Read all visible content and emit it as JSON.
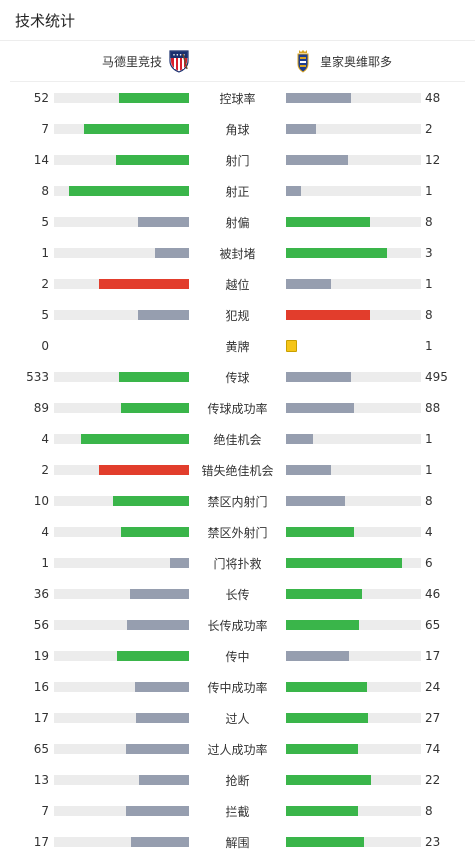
{
  "header": {
    "title": "技术统计"
  },
  "teams": {
    "home": "马德里竞技",
    "away": "皇家奥维耶多"
  },
  "colors": {
    "win": "#3ab54a",
    "lose": "#969eaf",
    "red": "#e23d2c",
    "track": "#ececec",
    "yellow": "#f5c518"
  },
  "stats": [
    {
      "label": "控球率",
      "home": "52",
      "away": "48",
      "home_pct": 0.52,
      "away_pct": 0.48,
      "home_color": "win",
      "away_color": "lose"
    },
    {
      "label": "角球",
      "home": "7",
      "away": "2",
      "home_pct": 0.78,
      "away_pct": 0.22,
      "home_color": "win",
      "away_color": "lose"
    },
    {
      "label": "射门",
      "home": "14",
      "away": "12",
      "home_pct": 0.54,
      "away_pct": 0.46,
      "home_color": "win",
      "away_color": "lose"
    },
    {
      "label": "射正",
      "home": "8",
      "away": "1",
      "home_pct": 0.89,
      "away_pct": 0.11,
      "home_color": "win",
      "away_color": "lose"
    },
    {
      "label": "射偏",
      "home": "5",
      "away": "8",
      "home_pct": 0.38,
      "away_pct": 0.62,
      "home_color": "lose",
      "away_color": "win"
    },
    {
      "label": "被封堵",
      "home": "1",
      "away": "3",
      "home_pct": 0.25,
      "away_pct": 0.75,
      "home_color": "lose",
      "away_color": "win"
    },
    {
      "label": "越位",
      "home": "2",
      "away": "1",
      "home_pct": 0.67,
      "away_pct": 0.33,
      "home_color": "red",
      "away_color": "lose"
    },
    {
      "label": "犯规",
      "home": "5",
      "away": "8",
      "home_pct": 0.38,
      "away_pct": 0.62,
      "home_color": "lose",
      "away_color": "red"
    },
    {
      "label": "黄牌",
      "home": "0",
      "away": "1",
      "card": true
    },
    {
      "label": "传球",
      "home": "533",
      "away": "495",
      "home_pct": 0.52,
      "away_pct": 0.48,
      "home_color": "win",
      "away_color": "lose"
    },
    {
      "label": "传球成功率",
      "home": "89",
      "away": "88",
      "home_pct": 0.5,
      "away_pct": 0.5,
      "home_color": "win",
      "away_color": "lose"
    },
    {
      "label": "绝佳机会",
      "home": "4",
      "away": "1",
      "home_pct": 0.8,
      "away_pct": 0.2,
      "home_color": "win",
      "away_color": "lose"
    },
    {
      "label": "错失绝佳机会",
      "home": "2",
      "away": "1",
      "home_pct": 0.67,
      "away_pct": 0.33,
      "home_color": "red",
      "away_color": "lose"
    },
    {
      "label": "禁区内射门",
      "home": "10",
      "away": "8",
      "home_pct": 0.56,
      "away_pct": 0.44,
      "home_color": "win",
      "away_color": "lose"
    },
    {
      "label": "禁区外射门",
      "home": "4",
      "away": "4",
      "home_pct": 0.5,
      "away_pct": 0.5,
      "home_color": "win",
      "away_color": "win"
    },
    {
      "label": "门将扑救",
      "home": "1",
      "away": "6",
      "home_pct": 0.14,
      "away_pct": 0.86,
      "home_color": "lose",
      "away_color": "win"
    },
    {
      "label": "长传",
      "home": "36",
      "away": "46",
      "home_pct": 0.44,
      "away_pct": 0.56,
      "home_color": "lose",
      "away_color": "win"
    },
    {
      "label": "长传成功率",
      "home": "56",
      "away": "65",
      "home_pct": 0.46,
      "away_pct": 0.54,
      "home_color": "lose",
      "away_color": "win"
    },
    {
      "label": "传中",
      "home": "19",
      "away": "17",
      "home_pct": 0.53,
      "away_pct": 0.47,
      "home_color": "win",
      "away_color": "lose"
    },
    {
      "label": "传中成功率",
      "home": "16",
      "away": "24",
      "home_pct": 0.4,
      "away_pct": 0.6,
      "home_color": "lose",
      "away_color": "win"
    },
    {
      "label": "过人",
      "home": "17",
      "away": "27",
      "home_pct": 0.39,
      "away_pct": 0.61,
      "home_color": "lose",
      "away_color": "win"
    },
    {
      "label": "过人成功率",
      "home": "65",
      "away": "74",
      "home_pct": 0.47,
      "away_pct": 0.53,
      "home_color": "lose",
      "away_color": "win"
    },
    {
      "label": "抢断",
      "home": "13",
      "away": "22",
      "home_pct": 0.37,
      "away_pct": 0.63,
      "home_color": "lose",
      "away_color": "win"
    },
    {
      "label": "拦截",
      "home": "7",
      "away": "8",
      "home_pct": 0.47,
      "away_pct": 0.53,
      "home_color": "lose",
      "away_color": "win"
    },
    {
      "label": "解围",
      "home": "17",
      "away": "23",
      "home_pct": 0.43,
      "away_pct": 0.58,
      "home_color": "lose",
      "away_color": "win"
    }
  ]
}
